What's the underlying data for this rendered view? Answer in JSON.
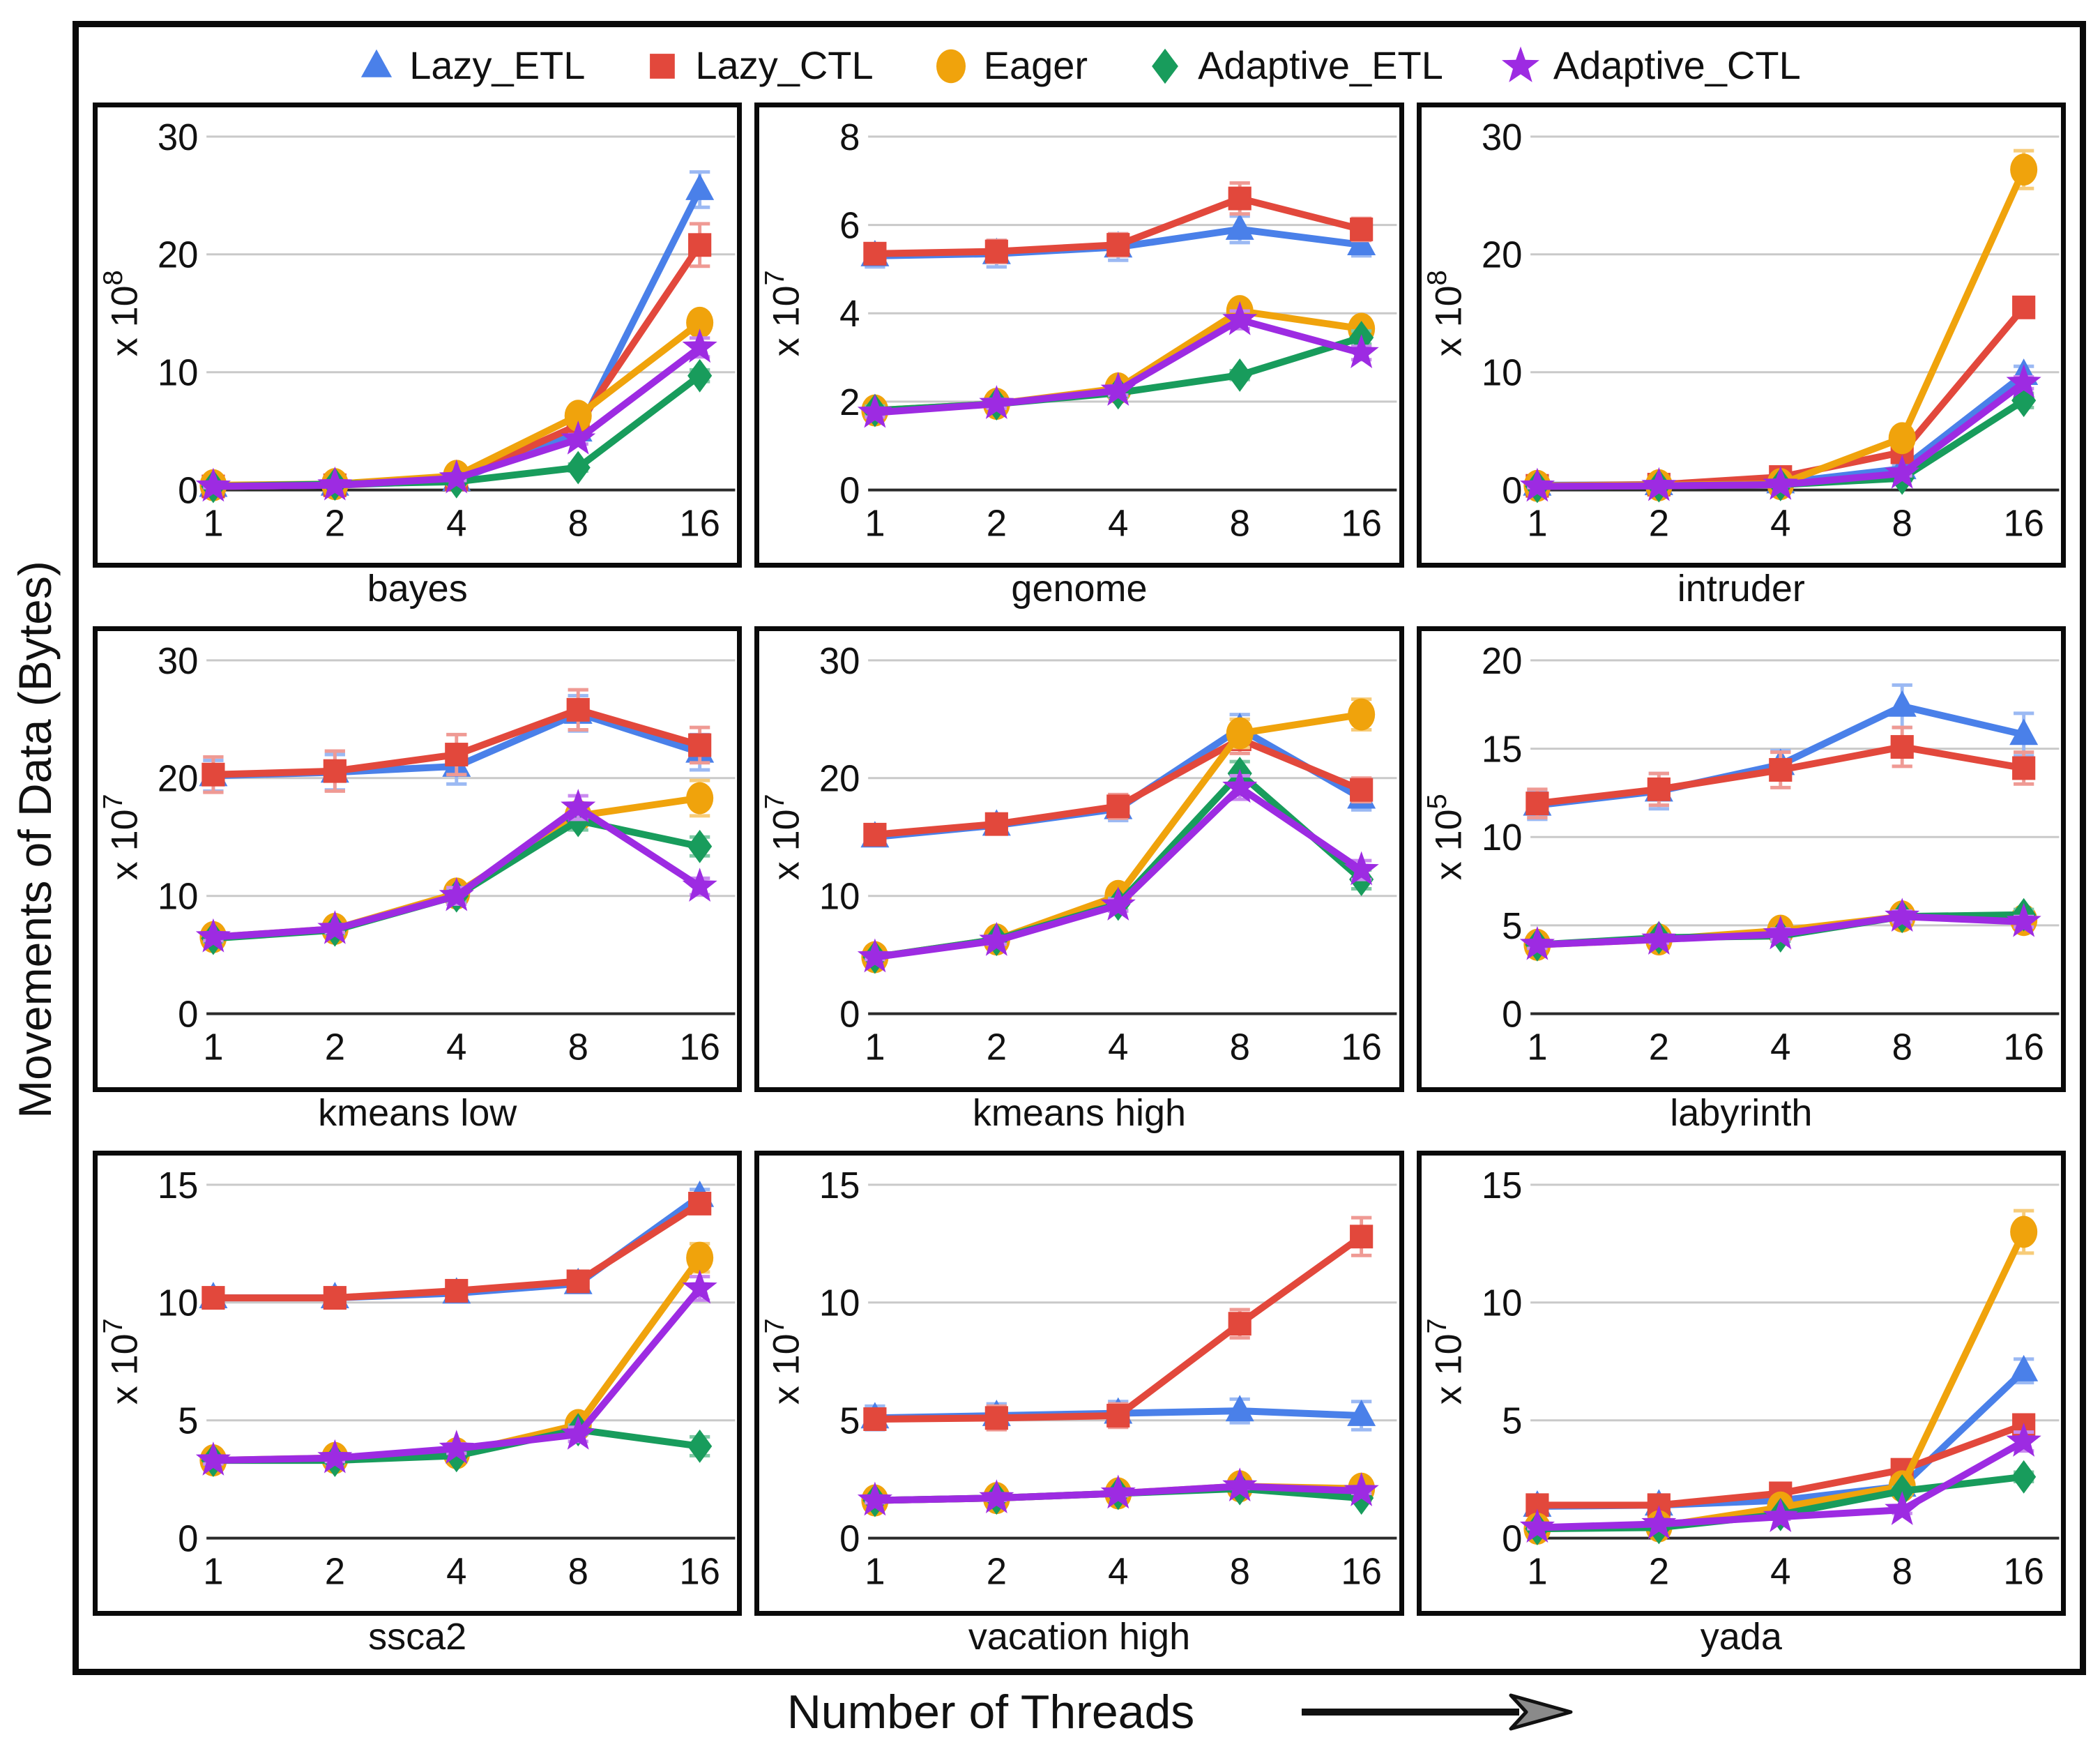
{
  "figure": {
    "y_axis_label": "Movements of Data (Bytes)",
    "x_axis_label": "Number of Threads"
  },
  "colors": {
    "grid_line": "#c9c9c9",
    "axis_line": "#2b2b2b",
    "frame": "#0a0a0a"
  },
  "legend": [
    {
      "name": "Lazy_ETL",
      "marker": "triangle",
      "color": "#4a80e9"
    },
    {
      "name": "Lazy_CTL",
      "marker": "square",
      "color": "#e2483c"
    },
    {
      "name": "Eager",
      "marker": "circle",
      "color": "#f0a30c"
    },
    {
      "name": "Adaptive_ETL",
      "marker": "diamond",
      "color": "#189c5c"
    },
    {
      "name": "Adaptive_CTL",
      "marker": "star",
      "color": "#9d2be2"
    }
  ],
  "chart_data": [
    {
      "type": "line",
      "title": "bayes",
      "x": [
        1,
        2,
        4,
        8,
        16
      ],
      "unit": {
        "prefix": "x 10",
        "exponent": "8"
      },
      "ylim": [
        0,
        30
      ],
      "yticks": [
        0,
        10,
        20,
        30
      ],
      "grid": true,
      "series": [
        {
          "name": "Lazy_ETL",
          "values": [
            0.3,
            0.4,
            0.8,
            5.0,
            25.5
          ],
          "err": [
            0.1,
            0.1,
            0.2,
            0.5,
            1.5
          ]
        },
        {
          "name": "Lazy_CTL",
          "values": [
            0.3,
            0.4,
            0.9,
            5.5,
            20.8
          ],
          "err": [
            0.1,
            0.1,
            0.2,
            0.5,
            1.8
          ]
        },
        {
          "name": "Eager",
          "values": [
            0.4,
            0.5,
            1.2,
            6.3,
            14.2
          ],
          "err": [
            0.1,
            0.1,
            0.2,
            0.5,
            0.8
          ]
        },
        {
          "name": "Adaptive_ETL",
          "values": [
            0.3,
            0.5,
            0.7,
            1.9,
            9.7
          ],
          "err": [
            0.1,
            0.1,
            0.2,
            0.3,
            0.5
          ]
        },
        {
          "name": "Adaptive_CTL",
          "values": [
            0.3,
            0.4,
            1.0,
            4.3,
            12.1
          ],
          "err": [
            0.1,
            0.1,
            0.2,
            0.4,
            0.8
          ]
        }
      ]
    },
    {
      "type": "line",
      "title": "genome",
      "x": [
        1,
        2,
        4,
        8,
        16
      ],
      "unit": {
        "prefix": "x 10",
        "exponent": "7"
      },
      "ylim": [
        0,
        8
      ],
      "yticks": [
        0,
        2,
        4,
        6,
        8
      ],
      "grid": true,
      "series": [
        {
          "name": "Lazy_ETL",
          "values": [
            5.3,
            5.35,
            5.5,
            5.9,
            5.55
          ],
          "err": [
            0.25,
            0.3,
            0.3,
            0.3,
            0.25
          ]
        },
        {
          "name": "Lazy_CTL",
          "values": [
            5.35,
            5.4,
            5.55,
            6.6,
            5.9
          ],
          "err": [
            0.2,
            0.25,
            0.25,
            0.35,
            0.25
          ]
        },
        {
          "name": "Eager",
          "values": [
            1.8,
            1.95,
            2.3,
            4.05,
            3.65
          ],
          "err": [
            0.1,
            0.1,
            0.1,
            0.15,
            0.15
          ]
        },
        {
          "name": "Adaptive_ETL",
          "values": [
            1.8,
            1.95,
            2.2,
            2.6,
            3.45
          ],
          "err": [
            0.1,
            0.1,
            0.1,
            0.1,
            0.15
          ]
        },
        {
          "name": "Adaptive_CTL",
          "values": [
            1.75,
            1.95,
            2.25,
            3.85,
            3.1
          ],
          "err": [
            0.1,
            0.1,
            0.1,
            0.2,
            0.15
          ]
        }
      ]
    },
    {
      "type": "line",
      "title": "intruder",
      "x": [
        1,
        2,
        4,
        8,
        16
      ],
      "unit": {
        "prefix": "x 10",
        "exponent": "8"
      },
      "ylim": [
        0,
        30
      ],
      "yticks": [
        0,
        10,
        20,
        30
      ],
      "grid": true,
      "series": [
        {
          "name": "Lazy_ETL",
          "values": [
            0.4,
            0.45,
            0.6,
            1.8,
            9.8
          ],
          "err": [
            0.1,
            0.1,
            0.1,
            0.3,
            0.7
          ]
        },
        {
          "name": "Lazy_CTL",
          "values": [
            0.35,
            0.45,
            1.1,
            3.2,
            15.5
          ],
          "err": [
            0.1,
            0.1,
            0.2,
            0.3,
            0.8
          ]
        },
        {
          "name": "Eager",
          "values": [
            0.35,
            0.4,
            0.5,
            4.4,
            27.2
          ],
          "err": [
            0.1,
            0.1,
            0.1,
            0.4,
            1.6
          ]
        },
        {
          "name": "Adaptive_ETL",
          "values": [
            0.3,
            0.35,
            0.45,
            1.0,
            7.6
          ],
          "err": [
            0.1,
            0.1,
            0.1,
            0.2,
            0.6
          ]
        },
        {
          "name": "Adaptive_CTL",
          "values": [
            0.3,
            0.35,
            0.45,
            1.4,
            9.1
          ],
          "err": [
            0.1,
            0.1,
            0.1,
            0.2,
            0.5
          ]
        }
      ]
    },
    {
      "type": "line",
      "title": "kmeans low",
      "x": [
        1,
        2,
        4,
        8,
        16
      ],
      "unit": {
        "prefix": "x 10",
        "exponent": "7"
      },
      "ylim": [
        0,
        30
      ],
      "yticks": [
        0,
        10,
        20,
        30
      ],
      "grid": true,
      "series": [
        {
          "name": "Lazy_ETL",
          "values": [
            20.2,
            20.5,
            21.0,
            25.5,
            22.2
          ],
          "err": [
            1.3,
            1.5,
            1.5,
            1.5,
            1.5
          ]
        },
        {
          "name": "Lazy_CTL",
          "values": [
            20.3,
            20.6,
            22.0,
            25.8,
            22.8
          ],
          "err": [
            1.5,
            1.7,
            1.7,
            1.7,
            1.5
          ]
        },
        {
          "name": "Eager",
          "values": [
            6.5,
            7.2,
            10.2,
            16.8,
            18.3
          ],
          "err": [
            0.3,
            0.3,
            0.5,
            0.8,
            1.5
          ]
        },
        {
          "name": "Adaptive_ETL",
          "values": [
            6.4,
            7.1,
            10.0,
            16.4,
            14.2
          ],
          "err": [
            0.3,
            0.3,
            0.5,
            0.8,
            0.8
          ]
        },
        {
          "name": "Adaptive_CTL",
          "values": [
            6.5,
            7.2,
            10.0,
            17.5,
            10.8
          ],
          "err": [
            0.3,
            0.3,
            0.7,
            1.0,
            0.7
          ]
        }
      ]
    },
    {
      "type": "line",
      "title": "kmeans high",
      "x": [
        1,
        2,
        4,
        8,
        16
      ],
      "unit": {
        "prefix": "x 10",
        "exponent": "7"
      },
      "ylim": [
        0,
        30
      ],
      "yticks": [
        0,
        10,
        20,
        30
      ],
      "grid": true,
      "series": [
        {
          "name": "Lazy_ETL",
          "values": [
            15.0,
            16.0,
            17.4,
            24.2,
            18.3
          ],
          "err": [
            0.7,
            0.7,
            1.0,
            1.2,
            1.0
          ]
        },
        {
          "name": "Lazy_CTL",
          "values": [
            15.2,
            16.1,
            17.6,
            23.3,
            19.0
          ],
          "err": [
            0.8,
            0.8,
            1.0,
            1.2,
            1.0
          ]
        },
        {
          "name": "Eager",
          "values": [
            4.8,
            6.3,
            10.0,
            23.8,
            25.4
          ],
          "err": [
            0.2,
            0.3,
            0.5,
            1.2,
            1.3
          ]
        },
        {
          "name": "Adaptive_ETL",
          "values": [
            4.8,
            6.3,
            9.3,
            20.4,
            11.4
          ],
          "err": [
            0.2,
            0.3,
            0.5,
            1.0,
            0.8
          ]
        },
        {
          "name": "Adaptive_CTL",
          "values": [
            4.8,
            6.2,
            9.2,
            19.2,
            12.2
          ],
          "err": [
            0.2,
            0.3,
            0.5,
            1.0,
            0.8
          ]
        }
      ]
    },
    {
      "type": "line",
      "title": "labyrinth",
      "x": [
        1,
        2,
        4,
        8,
        16
      ],
      "unit": {
        "prefix": "x 10",
        "exponent": "5"
      },
      "ylim": [
        0,
        20
      ],
      "yticks": [
        0,
        5,
        10,
        15,
        20
      ],
      "grid": true,
      "series": [
        {
          "name": "Lazy_ETL",
          "values": [
            11.8,
            12.6,
            14.1,
            17.4,
            15.8
          ],
          "err": [
            0.8,
            1.0,
            0.8,
            1.2,
            1.2
          ]
        },
        {
          "name": "Lazy_CTL",
          "values": [
            11.9,
            12.7,
            13.8,
            15.1,
            13.9
          ],
          "err": [
            0.8,
            0.9,
            1.0,
            1.1,
            0.9
          ]
        },
        {
          "name": "Eager",
          "values": [
            3.9,
            4.2,
            4.7,
            5.5,
            5.3
          ],
          "err": [
            0.2,
            0.2,
            0.3,
            0.3,
            0.3
          ]
        },
        {
          "name": "Adaptive_ETL",
          "values": [
            3.9,
            4.3,
            4.4,
            5.5,
            5.6
          ],
          "err": [
            0.2,
            0.2,
            0.3,
            0.3,
            0.3
          ]
        },
        {
          "name": "Adaptive_CTL",
          "values": [
            3.9,
            4.2,
            4.5,
            5.5,
            5.2
          ],
          "err": [
            0.2,
            0.2,
            0.3,
            0.3,
            0.3
          ]
        }
      ]
    },
    {
      "type": "line",
      "title": "ssca2",
      "x": [
        1,
        2,
        4,
        8,
        16
      ],
      "unit": {
        "prefix": "x 10",
        "exponent": "7"
      },
      "ylim": [
        0,
        15
      ],
      "yticks": [
        0,
        5,
        10,
        15
      ],
      "grid": true,
      "series": [
        {
          "name": "Lazy_ETL",
          "values": [
            10.2,
            10.2,
            10.4,
            10.8,
            14.5
          ],
          "err": [
            0.2,
            0.2,
            0.3,
            0.3,
            0.3
          ]
        },
        {
          "name": "Lazy_CTL",
          "values": [
            10.2,
            10.2,
            10.5,
            10.9,
            14.2
          ],
          "err": [
            0.2,
            0.3,
            0.3,
            0.4,
            0.4
          ]
        },
        {
          "name": "Eager",
          "values": [
            3.3,
            3.4,
            3.6,
            4.8,
            11.9
          ],
          "err": [
            0.15,
            0.15,
            0.2,
            0.2,
            0.6
          ]
        },
        {
          "name": "Adaptive_ETL",
          "values": [
            3.3,
            3.3,
            3.5,
            4.6,
            3.9
          ],
          "err": [
            0.15,
            0.15,
            0.2,
            0.2,
            0.4
          ]
        },
        {
          "name": "Adaptive_CTL",
          "values": [
            3.3,
            3.4,
            3.8,
            4.4,
            10.6
          ],
          "err": [
            0.15,
            0.15,
            0.2,
            0.3,
            0.5
          ]
        }
      ]
    },
    {
      "type": "line",
      "title": "vacation high",
      "x": [
        1,
        2,
        4,
        8,
        16
      ],
      "unit": {
        "prefix": "x 10",
        "exponent": "7"
      },
      "ylim": [
        0,
        15
      ],
      "yticks": [
        0,
        5,
        10,
        15
      ],
      "grid": true,
      "series": [
        {
          "name": "Lazy_ETL",
          "values": [
            5.1,
            5.2,
            5.3,
            5.4,
            5.2
          ],
          "err": [
            0.5,
            0.5,
            0.5,
            0.5,
            0.6
          ]
        },
        {
          "name": "Lazy_CTL",
          "values": [
            5.05,
            5.1,
            5.2,
            9.1,
            12.8
          ],
          "err": [
            0.4,
            0.5,
            0.5,
            0.6,
            0.8
          ]
        },
        {
          "name": "Eager",
          "values": [
            1.6,
            1.7,
            1.9,
            2.2,
            2.1
          ],
          "err": [
            0.1,
            0.1,
            0.1,
            0.1,
            0.1
          ]
        },
        {
          "name": "Adaptive_ETL",
          "values": [
            1.6,
            1.7,
            1.9,
            2.1,
            1.7
          ],
          "err": [
            0.1,
            0.1,
            0.1,
            0.1,
            0.1
          ]
        },
        {
          "name": "Adaptive_CTL",
          "values": [
            1.6,
            1.7,
            1.9,
            2.2,
            2.0
          ],
          "err": [
            0.1,
            0.1,
            0.1,
            0.1,
            0.1
          ]
        }
      ]
    },
    {
      "type": "line",
      "title": "yada",
      "x": [
        1,
        2,
        4,
        8,
        16
      ],
      "unit": {
        "prefix": "x 10",
        "exponent": "7"
      },
      "ylim": [
        0,
        15
      ],
      "yticks": [
        0,
        5,
        10,
        15
      ],
      "grid": true,
      "series": [
        {
          "name": "Lazy_ETL",
          "values": [
            1.35,
            1.4,
            1.6,
            2.2,
            7.1
          ],
          "err": [
            0.1,
            0.1,
            0.1,
            0.2,
            0.5
          ]
        },
        {
          "name": "Lazy_CTL",
          "values": [
            1.4,
            1.4,
            1.9,
            2.9,
            4.8
          ],
          "err": [
            0.1,
            0.1,
            0.15,
            0.2,
            0.3
          ]
        },
        {
          "name": "Eager",
          "values": [
            0.4,
            0.5,
            1.3,
            2.2,
            13.0
          ],
          "err": [
            0.05,
            0.05,
            0.1,
            0.2,
            0.9
          ]
        },
        {
          "name": "Adaptive_ETL",
          "values": [
            0.4,
            0.45,
            1.0,
            2.0,
            2.6
          ],
          "err": [
            0.05,
            0.05,
            0.1,
            0.15,
            0.2
          ]
        },
        {
          "name": "Adaptive_CTL",
          "values": [
            0.45,
            0.6,
            0.9,
            1.2,
            4.1
          ],
          "err": [
            0.05,
            0.05,
            0.1,
            0.15,
            0.4
          ]
        }
      ]
    }
  ]
}
